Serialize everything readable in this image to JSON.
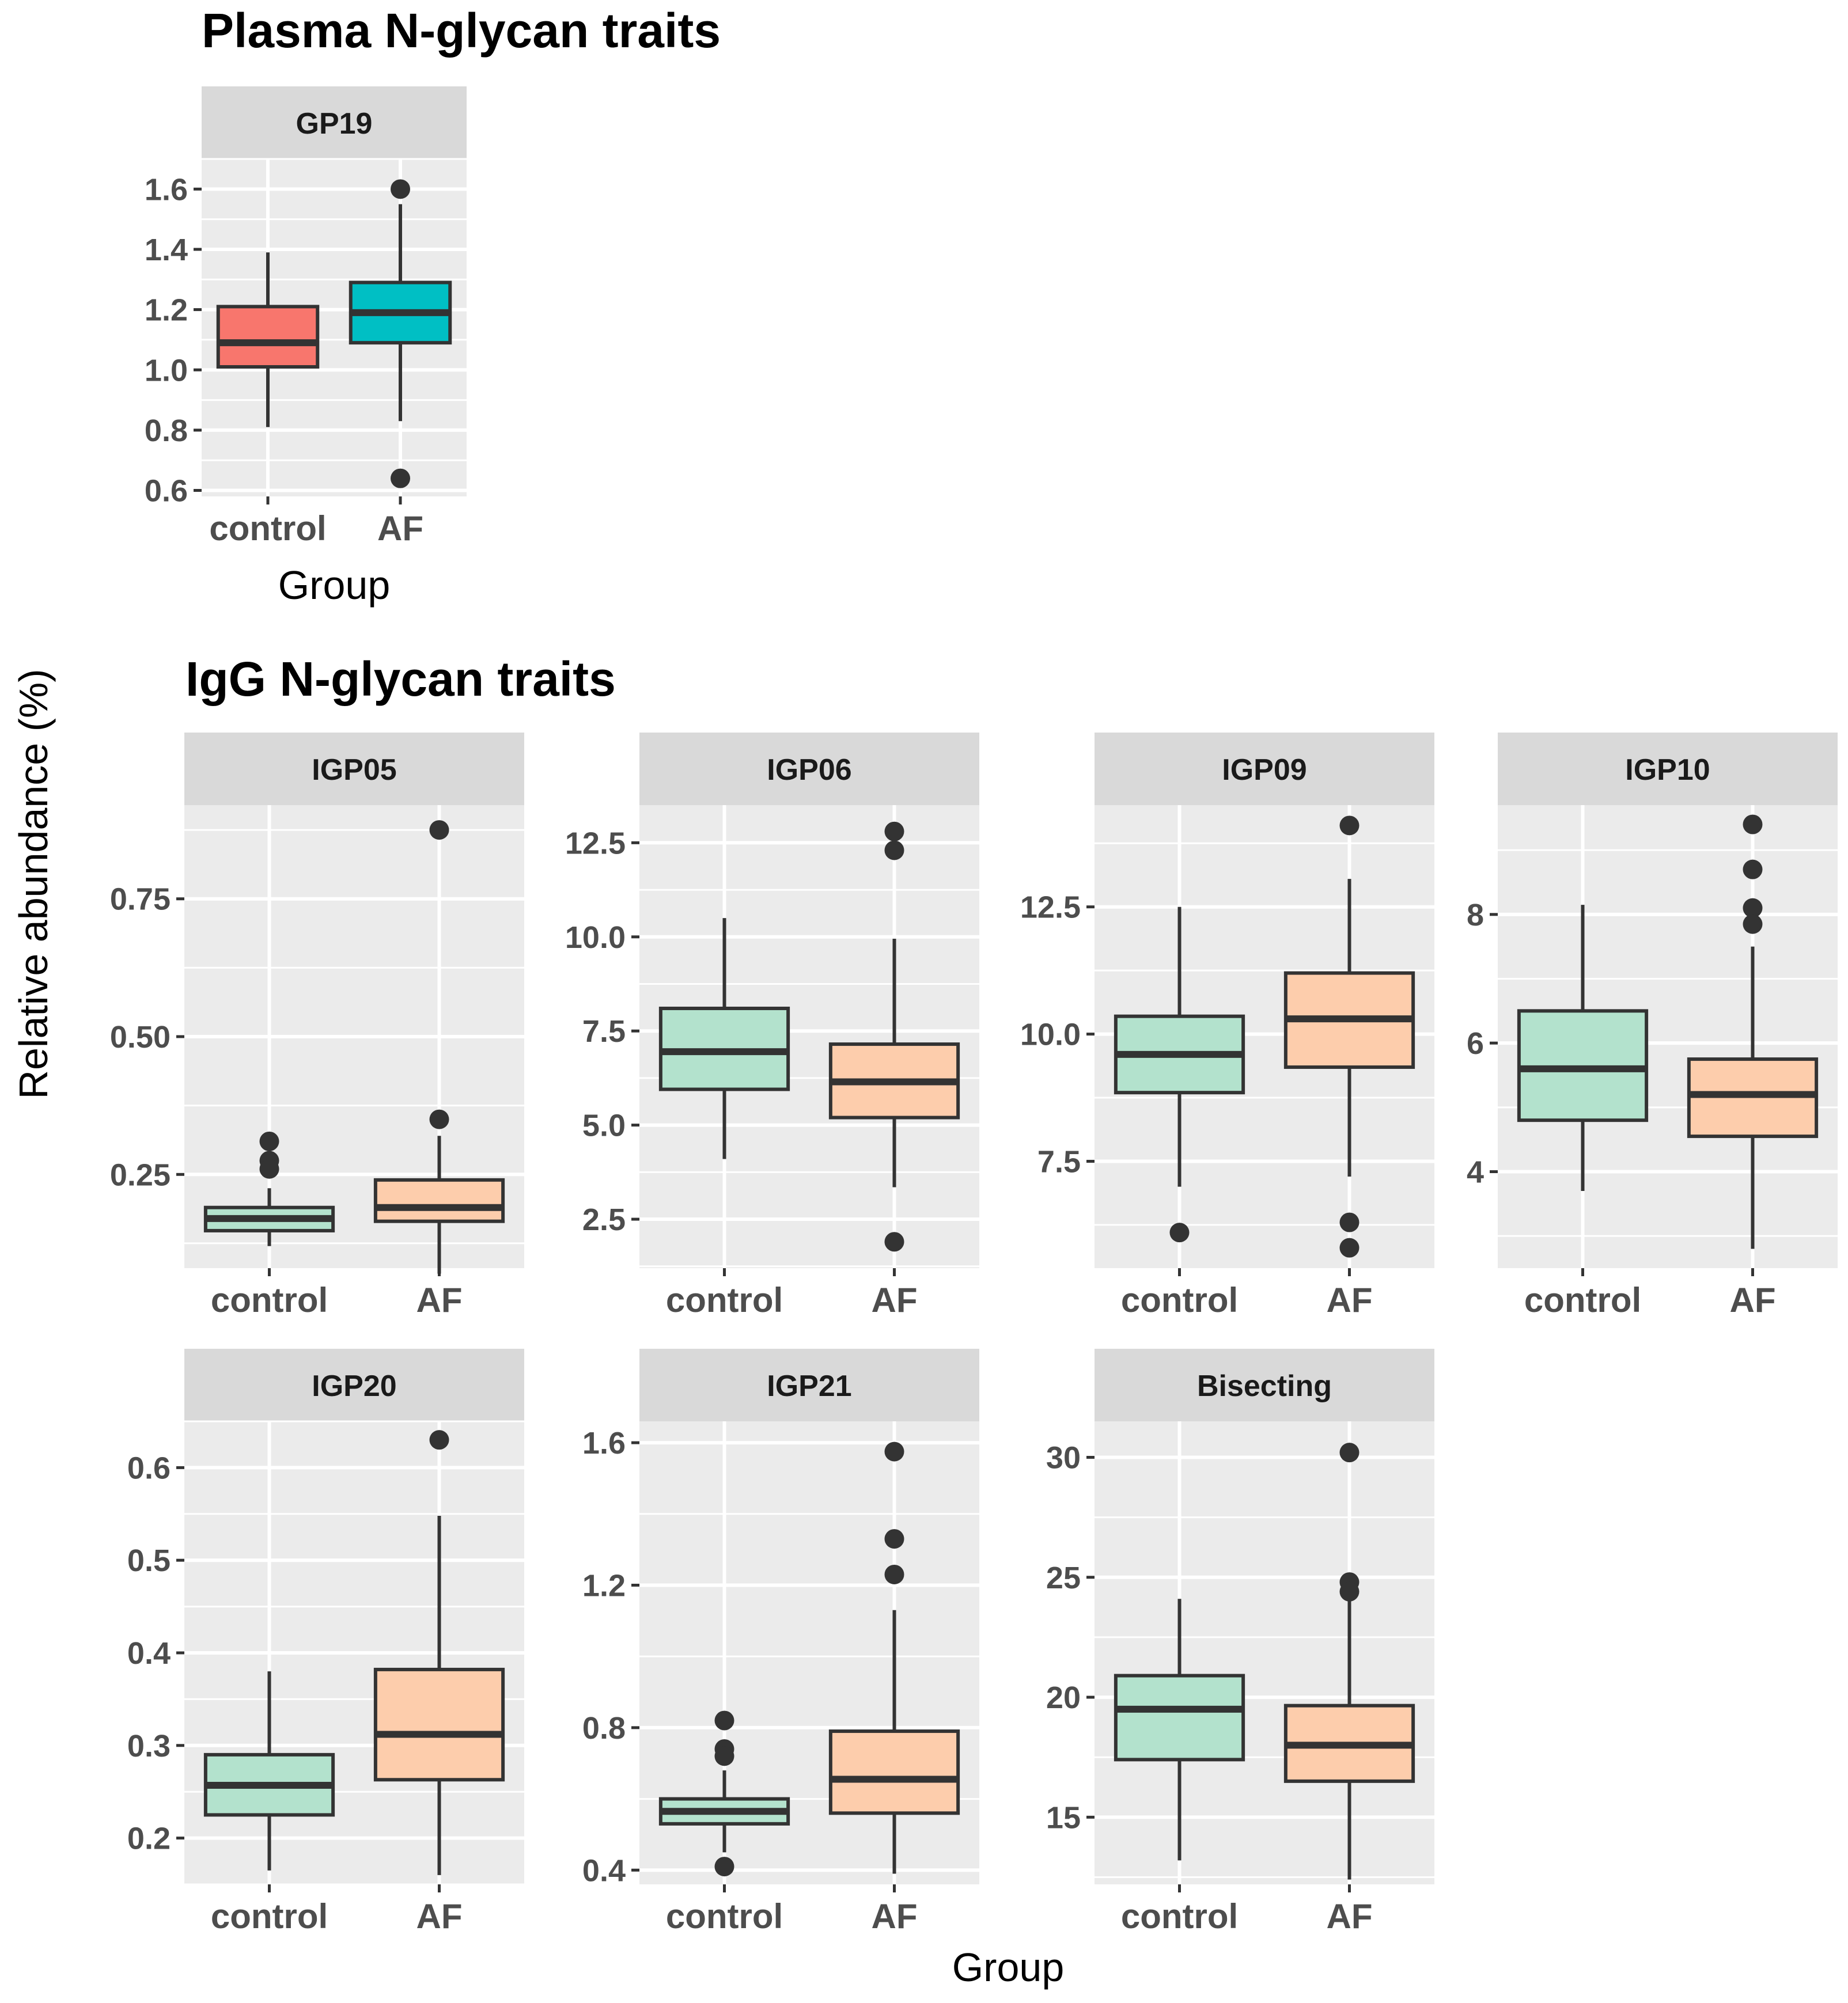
{
  "figure": {
    "plasma_title": "Plasma N-glycan traits",
    "igg_title": "IgG N-glycan traits",
    "y_axis_title": "Relative abundance (%)",
    "plasma_x_title": "Group",
    "igg_x_title": "Group"
  },
  "colors": {
    "panel_bg": "#ebebeb",
    "strip_bg": "#d9d9d9",
    "grid": "#ffffff",
    "box_stroke": "#333333",
    "tick": "#333333",
    "control_plasma": "#f8766d",
    "af_plasma": "#00bfc4",
    "control_igg": "#b3e2cd",
    "af_igg": "#fdcdac"
  },
  "chart_data": [
    {
      "type": "boxplot",
      "section": "plasma",
      "facet": "GP19",
      "categories": [
        "control",
        "AF"
      ],
      "ylim": [
        0.58,
        1.7
      ],
      "y_ticks": [
        0.6,
        0.8,
        1.0,
        1.2,
        1.4,
        1.6
      ],
      "y_tick_labels": [
        "0.6",
        "0.8",
        "1.0",
        "1.2",
        "1.4",
        "1.6"
      ],
      "boxes": [
        {
          "group": "control",
          "whisker_low": 0.81,
          "q1": 1.01,
          "median": 1.09,
          "q3": 1.21,
          "whisker_high": 1.39,
          "outliers": []
        },
        {
          "group": "AF",
          "whisker_low": 0.83,
          "q1": 1.09,
          "median": 1.19,
          "q3": 1.29,
          "whisker_high": 1.55,
          "outliers": [
            1.6,
            0.64
          ]
        }
      ]
    },
    {
      "type": "boxplot",
      "section": "igg",
      "facet": "IGP05",
      "categories": [
        "control",
        "AF"
      ],
      "ylim": [
        0.08,
        0.92
      ],
      "y_ticks": [
        0.25,
        0.5,
        0.75
      ],
      "y_tick_labels": [
        "0.25",
        "0.50",
        "0.75"
      ],
      "boxes": [
        {
          "group": "control",
          "whisker_low": 0.12,
          "q1": 0.148,
          "median": 0.17,
          "q3": 0.19,
          "whisker_high": 0.225,
          "outliers": [
            0.31,
            0.275,
            0.26
          ]
        },
        {
          "group": "AF",
          "whisker_low": 0.07,
          "q1": 0.165,
          "median": 0.19,
          "q3": 0.24,
          "whisker_high": 0.32,
          "outliers": [
            0.35,
            0.875
          ]
        }
      ]
    },
    {
      "type": "boxplot",
      "section": "igg",
      "facet": "IGP06",
      "categories": [
        "control",
        "AF"
      ],
      "ylim": [
        1.2,
        13.5
      ],
      "y_ticks": [
        2.5,
        5.0,
        7.5,
        10.0,
        12.5
      ],
      "y_tick_labels": [
        "2.5",
        "5.0",
        "7.5",
        "10.0",
        "12.5"
      ],
      "boxes": [
        {
          "group": "control",
          "whisker_low": 4.1,
          "q1": 5.95,
          "median": 6.95,
          "q3": 8.1,
          "whisker_high": 10.5,
          "outliers": []
        },
        {
          "group": "AF",
          "whisker_low": 3.35,
          "q1": 5.2,
          "median": 6.15,
          "q3": 7.15,
          "whisker_high": 9.95,
          "outliers": [
            12.8,
            12.3,
            1.9
          ]
        }
      ]
    },
    {
      "type": "boxplot",
      "section": "igg",
      "facet": "IGP09",
      "categories": [
        "control",
        "AF"
      ],
      "ylim": [
        5.4,
        14.5
      ],
      "y_ticks": [
        7.5,
        10.0,
        12.5
      ],
      "y_tick_labels": [
        "7.5",
        "10.0",
        "12.5"
      ],
      "boxes": [
        {
          "group": "control",
          "whisker_low": 7.0,
          "q1": 8.85,
          "median": 9.6,
          "q3": 10.35,
          "whisker_high": 12.5,
          "outliers": [
            6.1
          ]
        },
        {
          "group": "AF",
          "whisker_low": 7.2,
          "q1": 9.35,
          "median": 10.3,
          "q3": 11.2,
          "whisker_high": 13.05,
          "outliers": [
            14.1,
            6.3,
            5.8
          ]
        }
      ]
    },
    {
      "type": "boxplot",
      "section": "igg",
      "facet": "IGP10",
      "categories": [
        "control",
        "AF"
      ],
      "ylim": [
        2.5,
        9.7
      ],
      "y_ticks": [
        4,
        6,
        8
      ],
      "y_tick_labels": [
        "4",
        "6",
        "8"
      ],
      "boxes": [
        {
          "group": "control",
          "whisker_low": 3.7,
          "q1": 4.8,
          "median": 5.6,
          "q3": 6.5,
          "whisker_high": 8.15,
          "outliers": []
        },
        {
          "group": "AF",
          "whisker_low": 2.8,
          "q1": 4.55,
          "median": 5.2,
          "q3": 5.75,
          "whisker_high": 7.5,
          "outliers": [
            9.4,
            8.7,
            8.1,
            7.85
          ]
        }
      ]
    },
    {
      "type": "boxplot",
      "section": "igg",
      "facet": "IGP20",
      "categories": [
        "control",
        "AF"
      ],
      "ylim": [
        0.15,
        0.65
      ],
      "y_ticks": [
        0.2,
        0.3,
        0.4,
        0.5,
        0.6
      ],
      "y_tick_labels": [
        "0.2",
        "0.3",
        "0.4",
        "0.5",
        "0.6"
      ],
      "boxes": [
        {
          "group": "control",
          "whisker_low": 0.165,
          "q1": 0.225,
          "median": 0.257,
          "q3": 0.29,
          "whisker_high": 0.38,
          "outliers": []
        },
        {
          "group": "AF",
          "whisker_low": 0.16,
          "q1": 0.263,
          "median": 0.312,
          "q3": 0.382,
          "whisker_high": 0.548,
          "outliers": [
            0.63
          ]
        }
      ]
    },
    {
      "type": "boxplot",
      "section": "igg",
      "facet": "IGP21",
      "categories": [
        "control",
        "AF"
      ],
      "ylim": [
        0.36,
        1.66
      ],
      "y_ticks": [
        0.4,
        0.8,
        1.2,
        1.6
      ],
      "y_tick_labels": [
        "0.4",
        "0.8",
        "1.2",
        "1.6"
      ],
      "boxes": [
        {
          "group": "control",
          "whisker_low": 0.45,
          "q1": 0.53,
          "median": 0.565,
          "q3": 0.6,
          "whisker_high": 0.68,
          "outliers": [
            0.82,
            0.74,
            0.72,
            0.41
          ]
        },
        {
          "group": "AF",
          "whisker_low": 0.39,
          "q1": 0.56,
          "median": 0.655,
          "q3": 0.79,
          "whisker_high": 1.13,
          "outliers": [
            1.575,
            1.33,
            1.23
          ]
        }
      ]
    },
    {
      "type": "boxplot",
      "section": "igg",
      "facet": "Bisecting",
      "categories": [
        "control",
        "AF"
      ],
      "ylim": [
        12.2,
        31.5
      ],
      "y_ticks": [
        15,
        20,
        25,
        30
      ],
      "y_tick_labels": [
        "15",
        "20",
        "25",
        "30"
      ],
      "boxes": [
        {
          "group": "control",
          "whisker_low": 13.2,
          "q1": 17.4,
          "median": 19.5,
          "q3": 20.9,
          "whisker_high": 24.1,
          "outliers": []
        },
        {
          "group": "AF",
          "whisker_low": 12.4,
          "q1": 16.5,
          "median": 18.0,
          "q3": 19.65,
          "whisker_high": 24.0,
          "outliers": [
            30.2,
            24.8,
            24.4
          ]
        }
      ]
    }
  ]
}
